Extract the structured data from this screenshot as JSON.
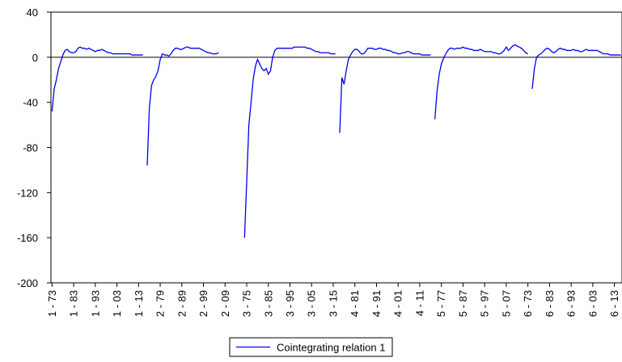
{
  "chart_data": {
    "type": "line",
    "categories": [
      "1 - 73",
      null,
      null,
      null,
      null,
      null,
      null,
      null,
      null,
      null,
      "1 - 83",
      null,
      null,
      null,
      null,
      null,
      null,
      null,
      null,
      null,
      "1 - 93",
      null,
      null,
      null,
      null,
      null,
      null,
      null,
      null,
      null,
      "1 - 03",
      null,
      null,
      null,
      null,
      null,
      null,
      null,
      null,
      null,
      "1 - 13",
      null,
      null,
      null,
      null,
      null,
      null,
      null,
      null,
      null,
      "2 - 79",
      null,
      null,
      null,
      null,
      null,
      null,
      null,
      null,
      null,
      "2 - 89",
      null,
      null,
      null,
      null,
      null,
      null,
      null,
      null,
      null,
      "2 - 99",
      null,
      null,
      null,
      null,
      null,
      null,
      null,
      null,
      null,
      "2 - 09",
      null,
      null,
      null,
      null,
      null,
      null,
      null,
      null,
      null,
      "3 - 75",
      null,
      null,
      null,
      null,
      null,
      null,
      null,
      null,
      null,
      "3 - 85",
      null,
      null,
      null,
      null,
      null,
      null,
      null,
      null,
      null,
      "3 - 95",
      null,
      null,
      null,
      null,
      null,
      null,
      null,
      null,
      null,
      "3 - 05",
      null,
      null,
      null,
      null,
      null,
      null,
      null,
      null,
      null,
      "3 - 15",
      null,
      null,
      null,
      null,
      null,
      null,
      null,
      null,
      null,
      "4 - 81",
      null,
      null,
      null,
      null,
      null,
      null,
      null,
      null,
      null,
      "4 - 91",
      null,
      null,
      null,
      null,
      null,
      null,
      null,
      null,
      null,
      "4 - 01",
      null,
      null,
      null,
      null,
      null,
      null,
      null,
      null,
      null,
      "4 - 11",
      null,
      null,
      null,
      null,
      null,
      null,
      null,
      null,
      null,
      "5 - 77",
      null,
      null,
      null,
      null,
      null,
      null,
      null,
      null,
      null,
      "5 - 87",
      null,
      null,
      null,
      null,
      null,
      null,
      null,
      null,
      null,
      "5 - 97",
      null,
      null,
      null,
      null,
      null,
      null,
      null,
      null,
      null,
      "5 - 07",
      null,
      null,
      null,
      null,
      null,
      null,
      null,
      null,
      null,
      "6 - 73",
      null,
      null,
      null,
      null,
      null,
      null,
      null,
      null,
      null,
      "6 - 83",
      null,
      null,
      null,
      null,
      null,
      null,
      null,
      null,
      null,
      "6 - 93",
      null,
      null,
      null,
      null,
      null,
      null,
      null,
      null,
      null,
      "6 - 03",
      null,
      null,
      null,
      null,
      null,
      null,
      null,
      null,
      null,
      "6 - 13",
      null,
      null,
      null
    ],
    "series": [
      {
        "name": "Cointegrating relation 1",
        "color": "#0000ee",
        "values": [
          -48,
          -28,
          -20,
          -10,
          -4,
          2,
          6,
          7,
          5,
          4,
          4,
          5,
          8,
          9,
          8,
          8,
          7,
          8,
          7,
          6,
          5,
          6,
          6,
          7,
          6,
          5,
          4,
          4,
          3,
          3,
          3,
          3,
          3,
          3,
          3,
          3,
          3,
          2,
          2,
          2,
          2,
          2,
          2,
          null,
          -96,
          -45,
          -25,
          -20,
          -17,
          -12,
          -2,
          3,
          2,
          2,
          1,
          3,
          6,
          8,
          8,
          7,
          7,
          8,
          9,
          9,
          8,
          8,
          8,
          8,
          8,
          7,
          6,
          5,
          4,
          4,
          3,
          3,
          3,
          4,
          null,
          null,
          null,
          null,
          null,
          null,
          null,
          null,
          null,
          null,
          null,
          -160,
          -110,
          -60,
          -40,
          -20,
          -8,
          -2,
          -6,
          -10,
          -12,
          -10,
          -15,
          -12,
          0,
          6,
          8,
          8,
          8,
          8,
          8,
          8,
          8,
          8,
          9,
          9,
          9,
          9,
          9,
          9,
          8,
          8,
          7,
          6,
          5,
          5,
          4,
          4,
          4,
          4,
          4,
          3,
          3,
          3,
          null,
          -67,
          -18,
          -24,
          -12,
          -2,
          2,
          5,
          7,
          7,
          5,
          3,
          3,
          5,
          8,
          8,
          8,
          7,
          7,
          8,
          8,
          7,
          7,
          6,
          6,
          5,
          4,
          4,
          3,
          3,
          4,
          4,
          5,
          5,
          4,
          3,
          3,
          3,
          3,
          2,
          2,
          2,
          2,
          2,
          null,
          -55,
          -30,
          -15,
          -6,
          -1,
          3,
          6,
          8,
          8,
          7,
          8,
          8,
          8,
          9,
          8,
          8,
          7,
          7,
          6,
          6,
          6,
          7,
          6,
          5,
          5,
          5,
          5,
          4,
          4,
          3,
          3,
          4,
          6,
          9,
          6,
          8,
          10,
          11,
          10,
          9,
          8,
          6,
          4,
          3,
          null,
          -28,
          -10,
          0,
          2,
          3,
          5,
          7,
          8,
          7,
          5,
          4,
          5,
          7,
          8,
          7,
          7,
          6,
          6,
          6,
          7,
          6,
          6,
          5,
          5,
          6,
          7,
          6,
          6,
          6,
          6,
          6,
          5,
          4,
          3,
          3,
          3,
          2,
          2,
          2,
          2,
          2,
          2
        ]
      }
    ],
    "ylim": [
      -200,
      40
    ],
    "yticks": [
      -200,
      -160,
      -120,
      -80,
      -40,
      0,
      40
    ],
    "zero_line": true,
    "grid": false,
    "legend": "bottom"
  }
}
